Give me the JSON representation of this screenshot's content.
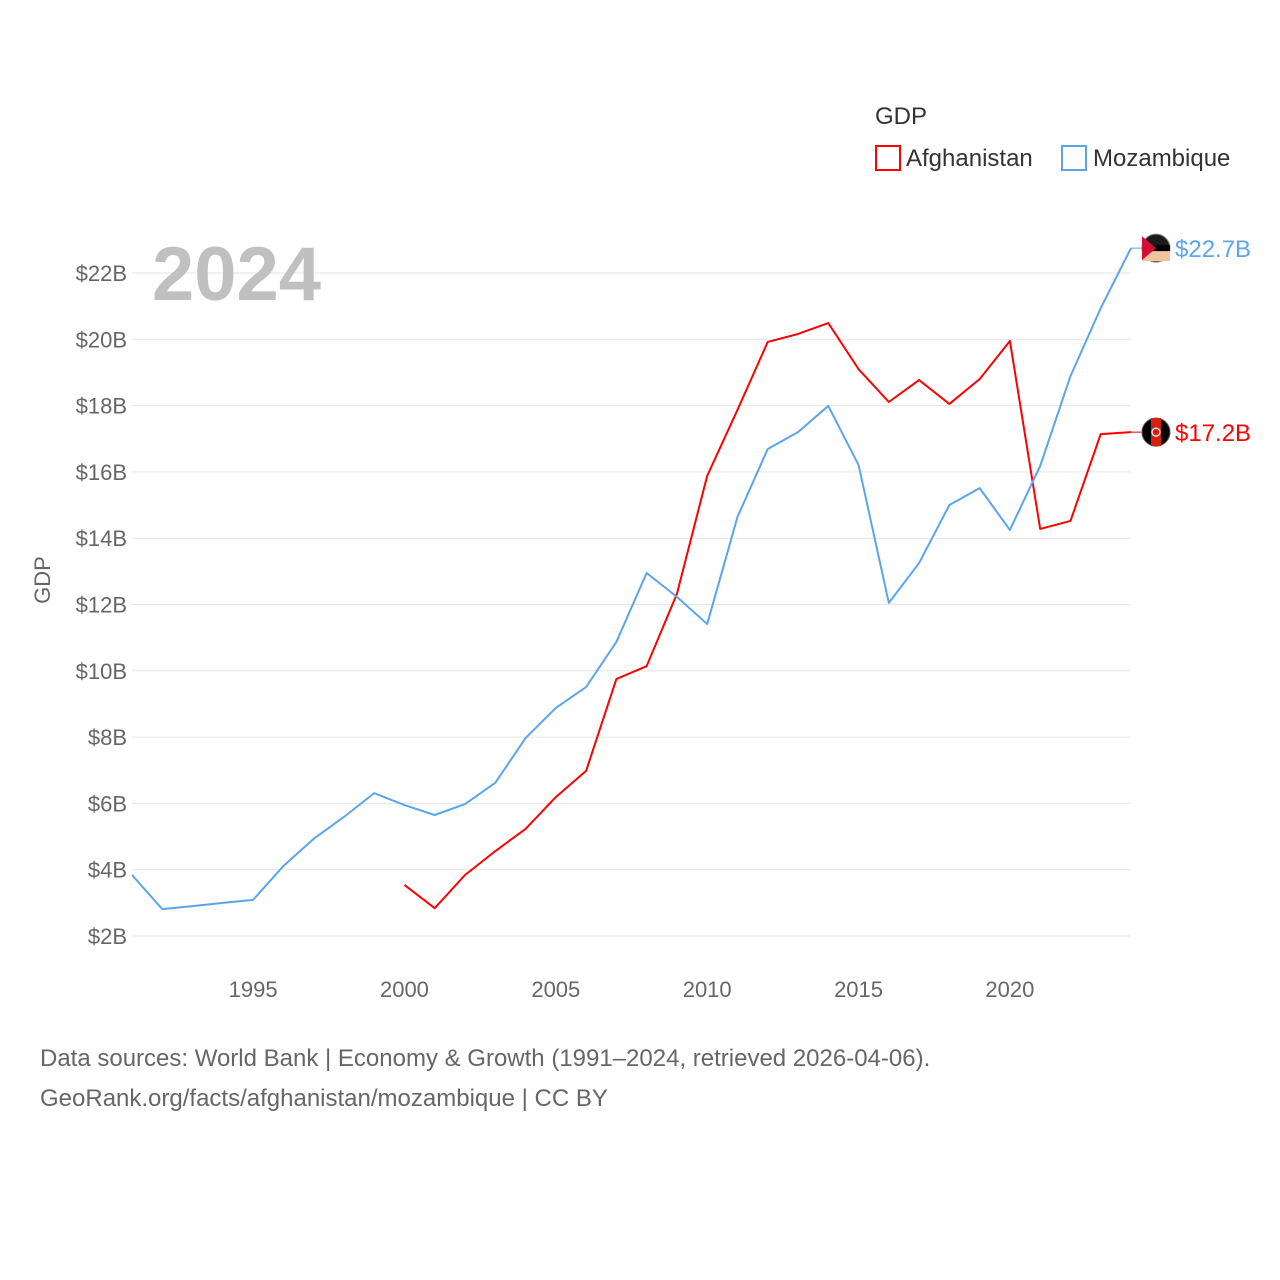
{
  "chart_data": {
    "type": "line",
    "title": "",
    "year_label": "2024",
    "xlabel": "",
    "ylabel": "GDP",
    "xlim": [
      1991,
      2024
    ],
    "ylim": [
      2,
      23
    ],
    "grid": true,
    "legend": {
      "title": "GDP",
      "placement": "top-right"
    },
    "x_ticks": [
      1995,
      2000,
      2005,
      2010,
      2015,
      2020
    ],
    "y_ticks": [
      2,
      4,
      6,
      8,
      10,
      12,
      14,
      16,
      18,
      20,
      22
    ],
    "y_tick_labels": [
      "$2B",
      "$4B",
      "$6B",
      "$8B",
      "$10B",
      "$12B",
      "$14B",
      "$16B",
      "$18B",
      "$20B",
      "$22B"
    ],
    "series": [
      {
        "name": "Afghanistan",
        "color": "#ff0000",
        "end_label": "$17.2B",
        "x": [
          2000,
          2001,
          2002,
          2003,
          2004,
          2005,
          2006,
          2007,
          2008,
          2009,
          2010,
          2011,
          2012,
          2013,
          2014,
          2015,
          2016,
          2017,
          2018,
          2019,
          2020,
          2021,
          2022,
          2023,
          2024
        ],
        "values": [
          3.54,
          2.84,
          3.84,
          4.56,
          5.23,
          6.19,
          6.98,
          9.75,
          10.14,
          12.32,
          15.88,
          17.87,
          19.92,
          20.16,
          20.49,
          19.1,
          18.11,
          18.77,
          18.05,
          18.8,
          19.95,
          14.28,
          14.52,
          17.14,
          17.2
        ]
      },
      {
        "name": "Mozambique",
        "color": "#5aa5eb",
        "end_label": "$22.7B",
        "x": [
          1991,
          1992,
          1993,
          1994,
          1995,
          1996,
          1997,
          1998,
          1999,
          2000,
          2001,
          2002,
          2003,
          2004,
          2005,
          2006,
          2007,
          2008,
          2009,
          2010,
          2011,
          2012,
          2013,
          2014,
          2015,
          2016,
          2017,
          2018,
          2019,
          2020,
          2021,
          2022,
          2023,
          2024
        ],
        "values": [
          3.84,
          2.81,
          2.9,
          3.0,
          3.09,
          4.11,
          4.93,
          5.59,
          6.31,
          5.95,
          5.65,
          5.98,
          6.62,
          7.97,
          8.88,
          9.51,
          10.87,
          12.95,
          12.23,
          11.41,
          14.64,
          16.69,
          17.2,
          17.99,
          16.21,
          12.05,
          13.25,
          15.0,
          15.51,
          14.25,
          16.18,
          18.89,
          20.94,
          22.75
        ]
      }
    ]
  },
  "footer": {
    "line1": "Data sources: World Bank | Economy & Growth (1991–2024, retrieved 2026-04-06).",
    "line2": "GeoRank.org/facts/afghanistan/mozambique | CC BY"
  }
}
